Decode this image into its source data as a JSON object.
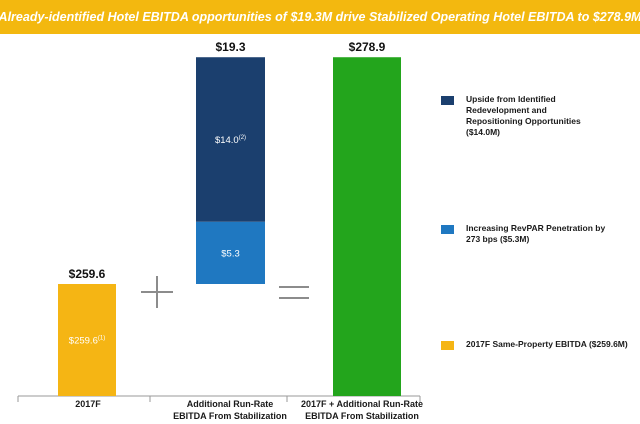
{
  "header": {
    "title": "Already-identified Hotel EBITDA opportunities of $19.3M drive Stabilized Operating Hotel EBITDA to $278.9M"
  },
  "chart_data": {
    "type": "bar",
    "categories": [
      [
        "2017F"
      ],
      [
        "Additional Run-Rate",
        "EBITDA From Stabilization"
      ],
      [
        "2017F + Additional Run-Rate",
        "EBITDA From Stabilization"
      ]
    ],
    "base_value": 259.6,
    "segments": [
      {
        "label": "$259.6",
        "sup": "(1)",
        "value": 259.6,
        "column": 0,
        "start": 0,
        "color": "#f5b514"
      },
      {
        "label": "$5.3",
        "sup": "",
        "value": 5.3,
        "column": 1,
        "start": 259.6,
        "color": "#1f78c1"
      },
      {
        "label": "$14.0",
        "sup": "(2)",
        "value": 14.0,
        "column": 1,
        "start": 264.9,
        "color": "#1b3f6e"
      },
      {
        "label": "",
        "sup": "",
        "value": 278.9,
        "column": 2,
        "start": 0,
        "color": "#23a51c"
      }
    ],
    "totals": [
      {
        "label": "$259.6",
        "value": 259.6,
        "column": 0
      },
      {
        "label": "$19.3",
        "value": 278.9,
        "column": 1
      },
      {
        "label": "$278.9",
        "value": 278.9,
        "column": 2
      }
    ],
    "operators": [
      "+",
      "="
    ],
    "legend": [
      {
        "lines": [
          "Upside from Identified",
          "Redevelopment and",
          "Repositioning Opportunities",
          "($14.0M)"
        ],
        "color": "#1b3f6e"
      },
      {
        "lines": [
          "Increasing RevPAR Penetration by",
          "273 bps ($5.3M)"
        ],
        "color": "#1f78c1"
      },
      {
        "lines": [
          "2017F Same-Property EBITDA ($259.6M)"
        ],
        "color": "#f5b514"
      }
    ]
  }
}
